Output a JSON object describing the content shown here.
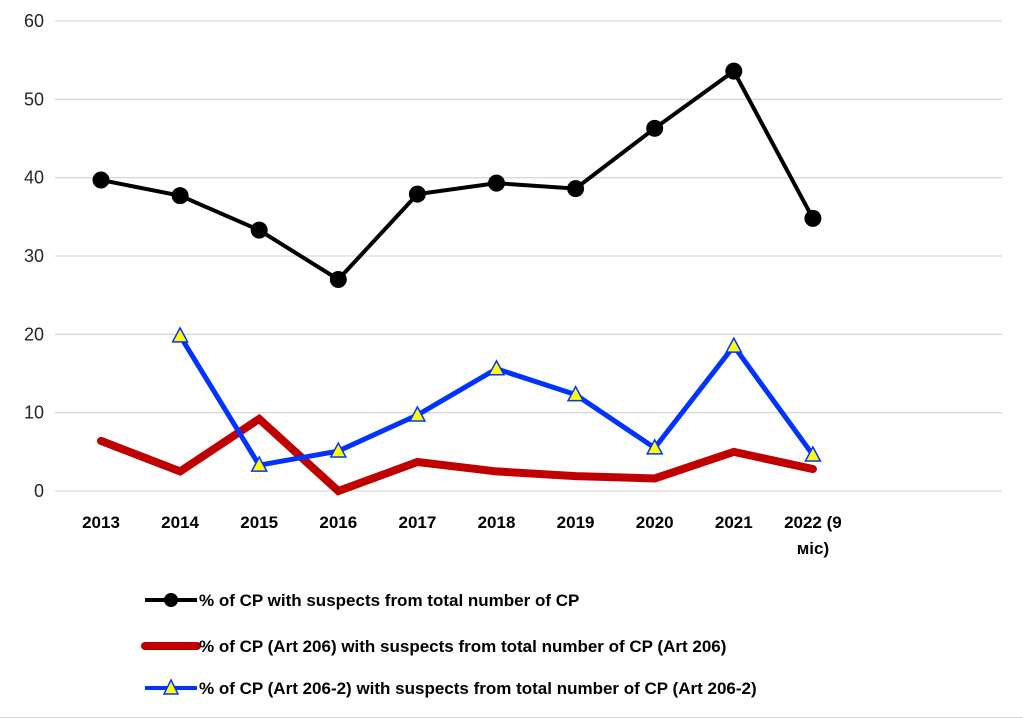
{
  "chart_data": {
    "type": "line",
    "title": "",
    "xlabel": "",
    "ylabel": "",
    "ylim": [
      0,
      60
    ],
    "yticks": [
      "0",
      "10",
      "20",
      "30",
      "40",
      "50",
      "60"
    ],
    "grid": true,
    "categories": [
      "2013",
      "2014",
      "2015",
      "2016",
      "2017",
      "2018",
      "2019",
      "2020",
      "2021",
      [
        "2022 (9",
        "міс)"
      ]
    ],
    "category_labels": [
      "2013",
      "2014",
      "2015",
      "2016",
      "2017",
      "2018",
      "2019",
      "2020",
      "2021",
      "2022 (9 міс)"
    ],
    "legend_position": "bottom",
    "series": [
      {
        "name": "% of CP with suspects from total number of CP",
        "color": "#000000",
        "marker": "circle",
        "values": [
          39.7,
          37.7,
          33.3,
          27.0,
          37.9,
          39.3,
          38.6,
          46.3,
          53.6,
          34.8
        ]
      },
      {
        "name": "% of CP (Art 206) with suspects from total number of CP (Art 206)",
        "color": "#c00000",
        "marker": "none",
        "values": [
          6.4,
          2.5,
          9.2,
          0.0,
          3.7,
          2.5,
          1.9,
          1.6,
          5.0,
          2.8
        ]
      },
      {
        "name": "% of CP (Art 206-2) with suspects from total number of CP (Art 206-2)",
        "color": "#0033ff",
        "marker": "triangle",
        "marker_fill": "#ffff00",
        "values": [
          null,
          19.8,
          3.3,
          5.1,
          9.7,
          15.6,
          12.3,
          5.5,
          18.5,
          4.6
        ]
      }
    ]
  }
}
